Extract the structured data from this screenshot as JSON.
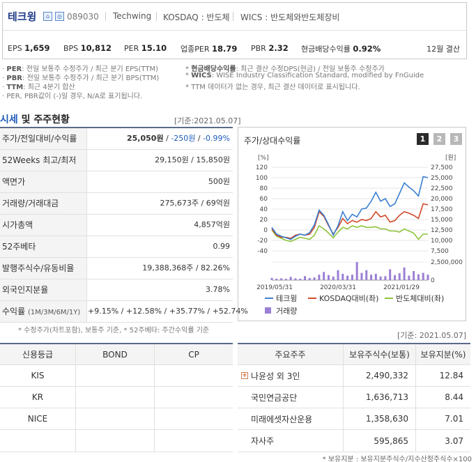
{
  "company": {
    "name": "테크윙",
    "code": "089030",
    "english_name": "Techwing",
    "market": "KOSDAQ : 반도체",
    "wics": "WICS : 반도체와반도체장비",
    "settlement": "12월 결산"
  },
  "stats": [
    {
      "label": "EPS",
      "value": "1,659"
    },
    {
      "label": "BPS",
      "value": "10,812"
    },
    {
      "label": "PER",
      "value": "15.10"
    },
    {
      "label": "업종PER",
      "value": "18.79"
    },
    {
      "label": "PBR",
      "value": "2.32"
    },
    {
      "label": "현금배당수익률",
      "value": "0.92%"
    }
  ],
  "notes": {
    "per": {
      "key": "PER",
      "text": ": 전일 보통주 수정주가 / 최근 분기 EPS(TTM)"
    },
    "pbr": {
      "key": "PBR",
      "text": ": 전일 보통주 수정주가 / 최근 분기 BPS(TTM)"
    },
    "ttm": {
      "key": "TTM",
      "text": ": 최근 4분기 합산"
    },
    "neg": "PER, PBR값이 (-)일 경우, N/A로 표기됩니다.",
    "div": {
      "key": "현금배당수익률",
      "text": ": 최근 결산 수정DPS(현금) / 전일 보통주 수정주가"
    },
    "wics": {
      "key": "WICS",
      "text": ": WISE Industry Classification Standard, modified by FnGuide"
    },
    "ttm_info": "TTM 데이터가 없는 경우, 최근 결산 데이터로 표시됩니다."
  },
  "section": {
    "title_hl": "시세",
    "title_rest": " 및 주주현황",
    "date": "[기준:2021.05.07]"
  },
  "market_rows": [
    {
      "label": "주가/전일대비/수익률",
      "value": "25,050원",
      "change": "-250원",
      "rate": "-0.99%"
    },
    {
      "label": "52Weeks 최고/최저",
      "value": "29,150원 / 15,850원"
    },
    {
      "label": "액면가",
      "value": "500원"
    },
    {
      "label": "거래량/거래대금",
      "value": "275,673주 / 69억원"
    },
    {
      "label": "시가총액",
      "value": "4,857억원"
    },
    {
      "label": "52주베타",
      "value": "0.99"
    },
    {
      "label": "발행주식수/유동비율",
      "value": "19,388,368주 / 82.26%"
    },
    {
      "label": "외국인지분율",
      "value": "3.78%"
    },
    {
      "label": "수익률",
      "label_sub": "(1M/3M/6M/1Y)",
      "r1": "+9.15%",
      "r2": "+12.58%",
      "r3": "+35.77%",
      "r4": "+52.74%"
    }
  ],
  "market_note": "* 수정주가(차트포함), 보통주 기준, * 52주베타: 주간수익률 기준",
  "chart_panel": {
    "title": "주가/상대수익률",
    "buttons": [
      "1",
      "2",
      "3"
    ]
  },
  "chart_data": {
    "type": "line",
    "left_axis_label": "[%]",
    "right_axis_label": "[원]",
    "left_ticks": [
      "120",
      "100",
      "80",
      "60",
      "40",
      "20",
      "0",
      "-20",
      "-40"
    ],
    "right_ticks": [
      "27,500",
      "25,000",
      "22,500",
      "20,000",
      "17,500",
      "15,000",
      "12,500",
      "10,000",
      "7,500"
    ],
    "volume_ticks": [
      "2,500,000",
      "0"
    ],
    "x_labels": [
      "2019/05/31",
      "2020/03/31",
      "2021/01/29"
    ],
    "ylim_left": [
      -40,
      120
    ],
    "series": [
      {
        "name": "테크윙",
        "color": "#3a7fd1",
        "values": [
          5,
          -8,
          -12,
          -15,
          -18,
          -12,
          -8,
          -10,
          -5,
          10,
          38,
          28,
          10,
          -10,
          8,
          35,
          18,
          30,
          25,
          40,
          42,
          55,
          72,
          55,
          60,
          45,
          50,
          70,
          90,
          82,
          75,
          65,
          102,
          100
        ]
      },
      {
        "name": "KOSDAQ대비(좌)",
        "color": "#d04a2a",
        "values": [
          2,
          -10,
          -14,
          -14,
          -16,
          -10,
          -8,
          -10,
          -8,
          5,
          35,
          26,
          8,
          -8,
          5,
          22,
          12,
          18,
          15,
          20,
          18,
          22,
          35,
          25,
          28,
          15,
          18,
          28,
          35,
          32,
          28,
          22,
          50,
          48
        ]
      },
      {
        "name": "반도체대비(좌)",
        "color": "#8cc43a",
        "values": [
          0,
          -12,
          -16,
          -20,
          -22,
          -18,
          -14,
          -16,
          -18,
          -10,
          8,
          2,
          -6,
          -15,
          -4,
          5,
          2,
          8,
          5,
          8,
          5,
          5,
          6,
          2,
          2,
          -2,
          -2,
          -4,
          2,
          -2,
          -6,
          -18,
          -8,
          -8
        ]
      }
    ],
    "volume": {
      "name": "거래량",
      "color": "#9b7fd4",
      "values": [
        0.12,
        0.08,
        0.1,
        0.07,
        0.18,
        0.1,
        0.08,
        0.22,
        0.12,
        0.15,
        0.3,
        0.45,
        0.28,
        0.2,
        0.55,
        0.35,
        0.25,
        0.3,
        1.0,
        0.4,
        0.55,
        0.3,
        0.35,
        0.2,
        0.22,
        0.6,
        0.28,
        0.38,
        0.7,
        0.25,
        0.5,
        0.32,
        0.4,
        0.3
      ]
    }
  },
  "bottom": {
    "date": "[기준: 2021.05.07]",
    "credit_header": [
      "신용등급",
      "BOND",
      "CP"
    ],
    "credit_rows": [
      "KIS",
      "KR",
      "NICE"
    ],
    "holder_header": [
      "주요주주",
      "보유주식수(보통)",
      "보유지분(%)"
    ],
    "holders": [
      {
        "name": "나윤성 외 3인",
        "shares": "2,490,332",
        "pct": "12.84",
        "expand": "+"
      },
      {
        "name": "국민연금공단",
        "shares": "1,636,713",
        "pct": "8.44"
      },
      {
        "name": "미래에셋자산운용",
        "shares": "1,358,630",
        "pct": "7.01"
      },
      {
        "name": "자사주",
        "shares": "595,865",
        "pct": "3.07"
      }
    ],
    "note": "* 보유지분 : 보유지분주식수/지수산정주식수×100"
  }
}
